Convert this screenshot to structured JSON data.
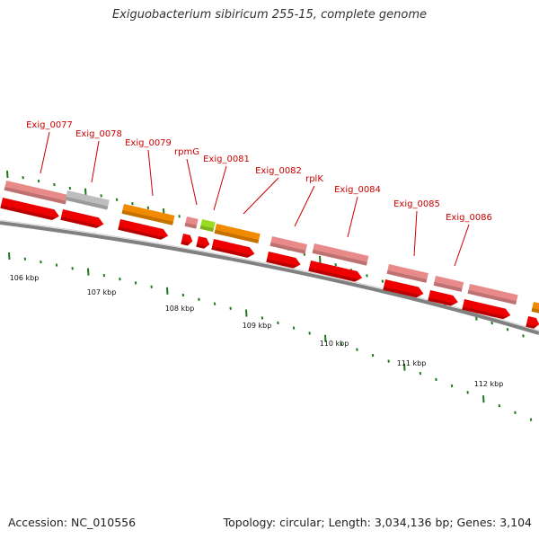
{
  "title": "Exiguobacterium sibiricum 255-15, complete genome",
  "footer": {
    "accession": "Accession: NC_010556",
    "topology": "Topology: circular; Length: 3,034,136 bp; Genes: 3,104"
  },
  "colors": {
    "label_red": "#cc0000",
    "cds": "#ee0000",
    "pink_gene": "#e88a8a",
    "grey_gene": "#bdbdbd",
    "orange_gene": "#f08a00",
    "lime_gene": "#99dd22",
    "tick_green": "#1a7a1a",
    "backbone": "#808080"
  },
  "scale_labels": [
    "106 kbp",
    "107 kbp",
    "108 kbp",
    "109 kbp",
    "110 kbp",
    "111 kbp",
    "112 kbp"
  ],
  "gene_labels": [
    "Exig_0077",
    "Exig_0078",
    "Exig_0079",
    "rpmG",
    "Exig_0081",
    "Exig_0082",
    "rplK",
    "Exig_0084",
    "Exig_0085",
    "Exig_0086"
  ]
}
